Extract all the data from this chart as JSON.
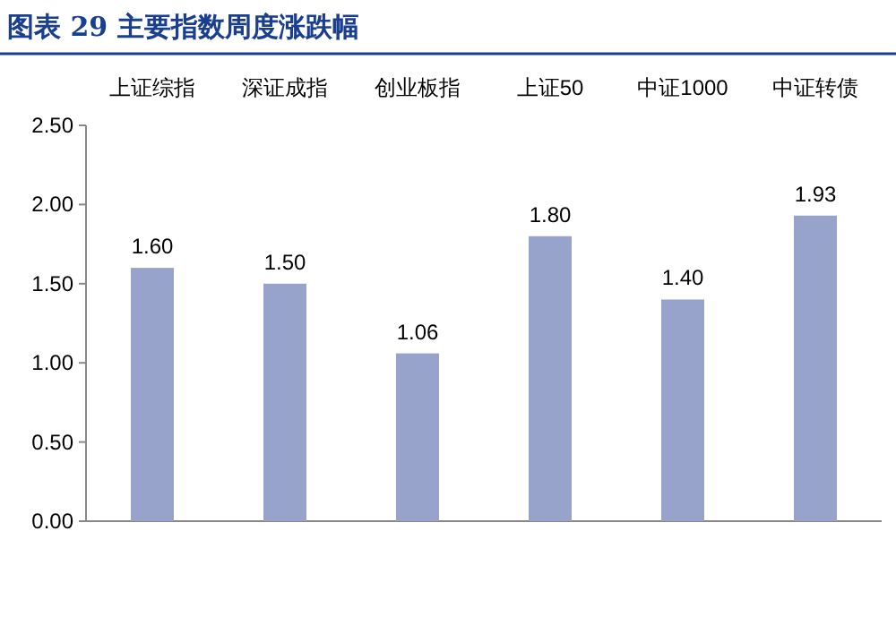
{
  "chart_data": {
    "type": "bar",
    "title": "图表 29  主要指数周度涨跌幅",
    "categories": [
      "上证综指",
      "深证成指",
      "创业板指",
      "上证50",
      "中证1000",
      "中证转债"
    ],
    "values": [
      1.6,
      1.5,
      1.06,
      1.8,
      1.4,
      1.93
    ],
    "color": "#97a3cb",
    "ylim": [
      0,
      2.5
    ],
    "yticks": [
      {
        "value": 0,
        "label": "0.00"
      },
      {
        "value": 0.5,
        "label": "0.50"
      },
      {
        "value": 1,
        "label": "1.00"
      },
      {
        "value": 1.5,
        "label": "1.50"
      },
      {
        "value": 2,
        "label": "2.00"
      },
      {
        "value": 2.5,
        "label": "2.50"
      }
    ],
    "value_labels": [
      "1.60",
      "1.50",
      "1.06",
      "1.80",
      "1.40",
      "1.93"
    ],
    "grid": false
  }
}
